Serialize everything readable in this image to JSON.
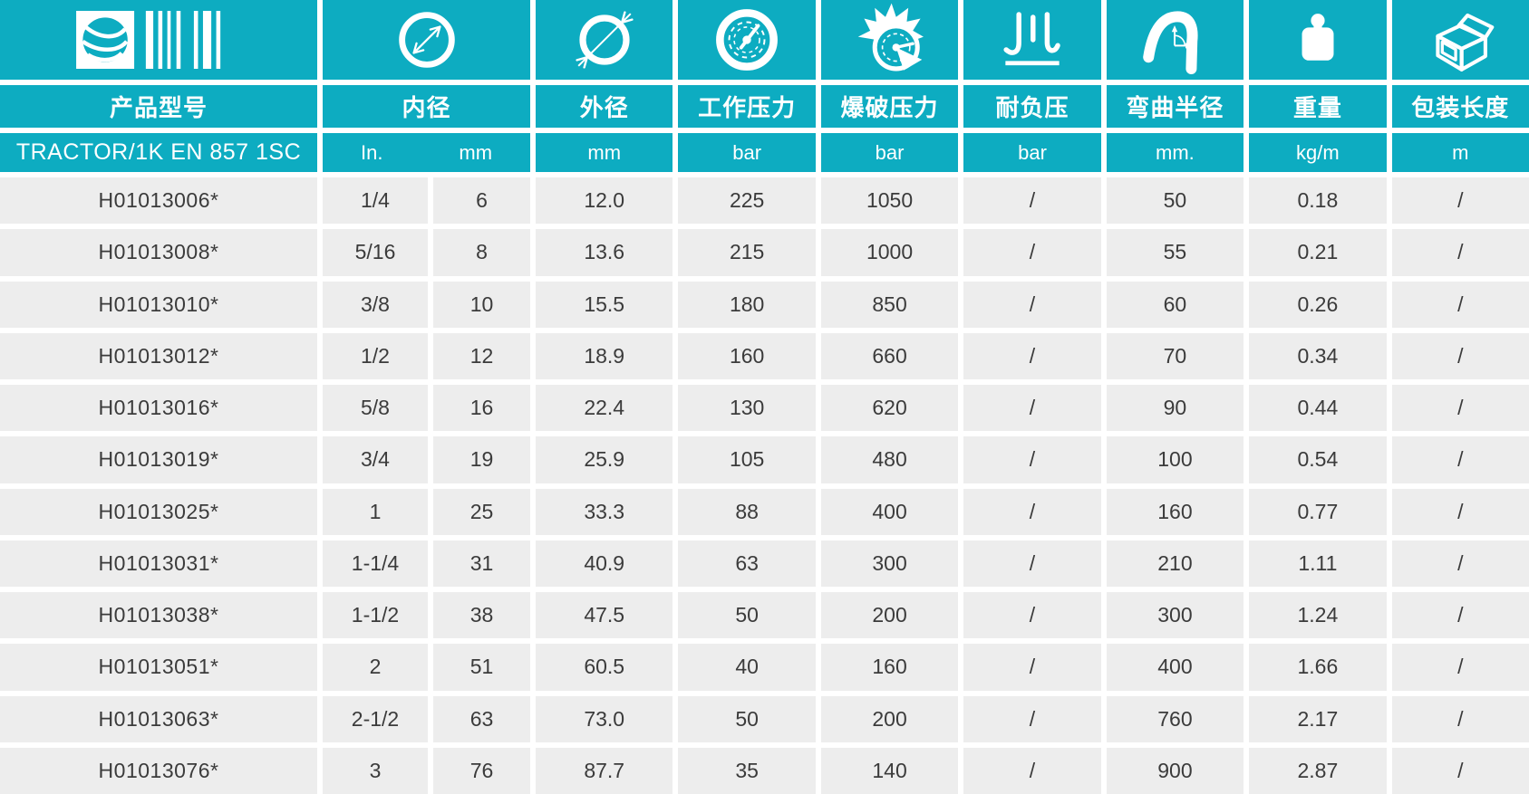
{
  "header": {
    "product_column_label": "产品型号",
    "series_name": "TRACTOR/1K EN 857 1SC",
    "brand_icon": "barcode-globe-icon",
    "columns": [
      {
        "label": "内径",
        "icon": "inner-diameter-icon",
        "units": [
          "In.",
          "mm"
        ]
      },
      {
        "label": "外径",
        "icon": "outer-diameter-icon",
        "unit": "mm"
      },
      {
        "label": "工作压力",
        "icon": "pressure-gauge-icon",
        "unit": "bar"
      },
      {
        "label": "爆破压力",
        "icon": "burst-pressure-icon",
        "unit": "bar"
      },
      {
        "label": "耐负压",
        "icon": "vacuum-resistance-icon",
        "unit": "bar"
      },
      {
        "label": "弯曲半径",
        "icon": "bend-radius-icon",
        "unit": "mm."
      },
      {
        "label": "重量",
        "icon": "weight-icon",
        "unit": "kg/m"
      },
      {
        "label": "包装长度",
        "icon": "package-box-icon",
        "unit": "m"
      }
    ]
  },
  "rows": [
    {
      "code": "H01013006*",
      "values": [
        "1/4",
        "6",
        "12.0",
        "225",
        "1050",
        "/",
        "50",
        "0.18",
        "/"
      ]
    },
    {
      "code": "H01013008*",
      "values": [
        "5/16",
        "8",
        "13.6",
        "215",
        "1000",
        "/",
        "55",
        "0.21",
        "/"
      ]
    },
    {
      "code": "H01013010*",
      "values": [
        "3/8",
        "10",
        "15.5",
        "180",
        "850",
        "/",
        "60",
        "0.26",
        "/"
      ]
    },
    {
      "code": "H01013012*",
      "values": [
        "1/2",
        "12",
        "18.9",
        "160",
        "660",
        "/",
        "70",
        "0.34",
        "/"
      ]
    },
    {
      "code": "H01013016*",
      "values": [
        "5/8",
        "16",
        "22.4",
        "130",
        "620",
        "/",
        "90",
        "0.44",
        "/"
      ]
    },
    {
      "code": "H01013019*",
      "values": [
        "3/4",
        "19",
        "25.9",
        "105",
        "480",
        "/",
        "100",
        "0.54",
        "/"
      ]
    },
    {
      "code": "H01013025*",
      "values": [
        "1",
        "25",
        "33.3",
        "88",
        "400",
        "/",
        "160",
        "0.77",
        "/"
      ]
    },
    {
      "code": "H01013031*",
      "values": [
        "1-1/4",
        "31",
        "40.9",
        "63",
        "300",
        "/",
        "210",
        "1.11",
        "/"
      ]
    },
    {
      "code": "H01013038*",
      "values": [
        "1-1/2",
        "38",
        "47.5",
        "50",
        "200",
        "/",
        "300",
        "1.24",
        "/"
      ]
    },
    {
      "code": "H01013051*",
      "values": [
        "2",
        "51",
        "60.5",
        "40",
        "160",
        "/",
        "400",
        "1.66",
        "/"
      ]
    },
    {
      "code": "H01013063*",
      "values": [
        "2-1/2",
        "63",
        "73.0",
        "50",
        "200",
        "/",
        "760",
        "2.17",
        "/"
      ]
    },
    {
      "code": "H01013076*",
      "values": [
        "3",
        "76",
        "87.7",
        "35",
        "140",
        "/",
        "900",
        "2.87",
        "/"
      ]
    }
  ],
  "colors": {
    "teal": "#0dacc1",
    "row_bg": "#ededed",
    "text_dark": "#3b3b3b",
    "white": "#ffffff"
  }
}
